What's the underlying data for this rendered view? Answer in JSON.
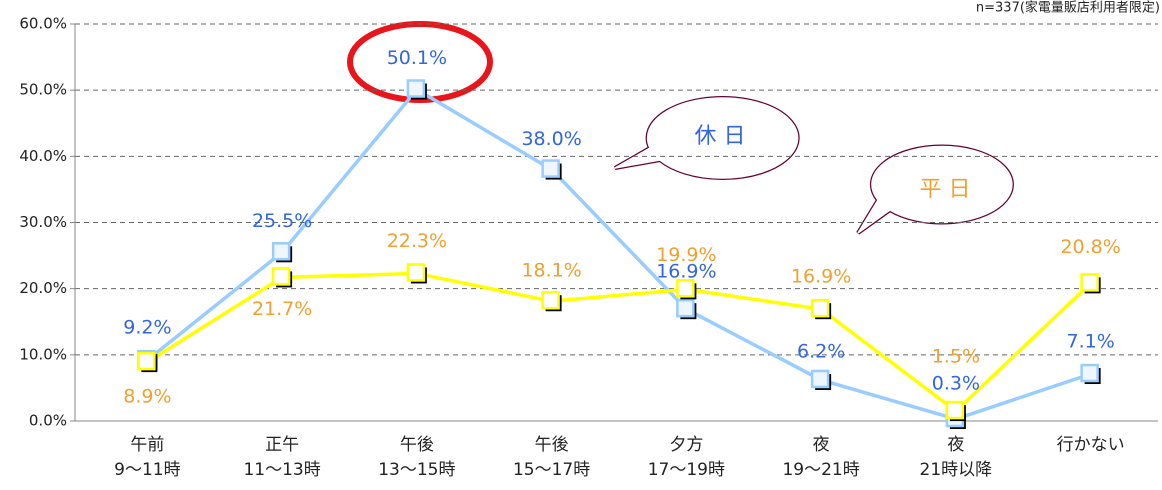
{
  "chart_data": {
    "type": "line",
    "annotations": [
      "n=337(家電量販店利用者限定)"
    ],
    "categories": [
      [
        "午前",
        "9～11時"
      ],
      [
        "正午",
        "11～13時"
      ],
      [
        "午後",
        "13～15時"
      ],
      [
        "午後",
        "15～17時"
      ],
      [
        "夕方",
        "17～19時"
      ],
      [
        "夜",
        "19～21時"
      ],
      [
        "夜",
        "21時以降"
      ],
      [
        "行かない"
      ]
    ],
    "series": [
      {
        "name": "休 日",
        "color": "#99ccff",
        "label_color": "#3366dd",
        "marker_fill": "#eef6ff",
        "values": [
          9.2,
          25.5,
          50.1,
          38.0,
          16.9,
          6.2,
          0.3,
          7.1
        ],
        "value_labels": [
          "9.2%",
          "25.5%",
          "50.1%",
          "38.0%",
          "16.9%",
          "6.2%",
          "0.3%",
          "7.1%"
        ]
      },
      {
        "name": "平 日",
        "color": "#ffff00",
        "label_color": "#f0a030",
        "marker_fill": "#ffffff",
        "values": [
          8.9,
          21.7,
          22.3,
          18.1,
          19.9,
          16.9,
          1.5,
          20.8
        ],
        "value_labels": [
          "8.9%",
          "21.7%",
          "22.3%",
          "18.1%",
          "19.9%",
          "16.9%",
          "1.5%",
          "20.8%"
        ]
      }
    ],
    "ylim": [
      0,
      60
    ],
    "yticks": [
      {
        "value": 0,
        "label": "0.0%"
      },
      {
        "value": 10,
        "label": "10.0%"
      },
      {
        "value": 20,
        "label": "20.0%"
      },
      {
        "value": 30,
        "label": "30.0%"
      },
      {
        "value": 40,
        "label": "40.0%"
      },
      {
        "value": 50,
        "label": "50.0%"
      },
      {
        "value": 60,
        "label": "60.0%"
      }
    ],
    "grid": true
  }
}
